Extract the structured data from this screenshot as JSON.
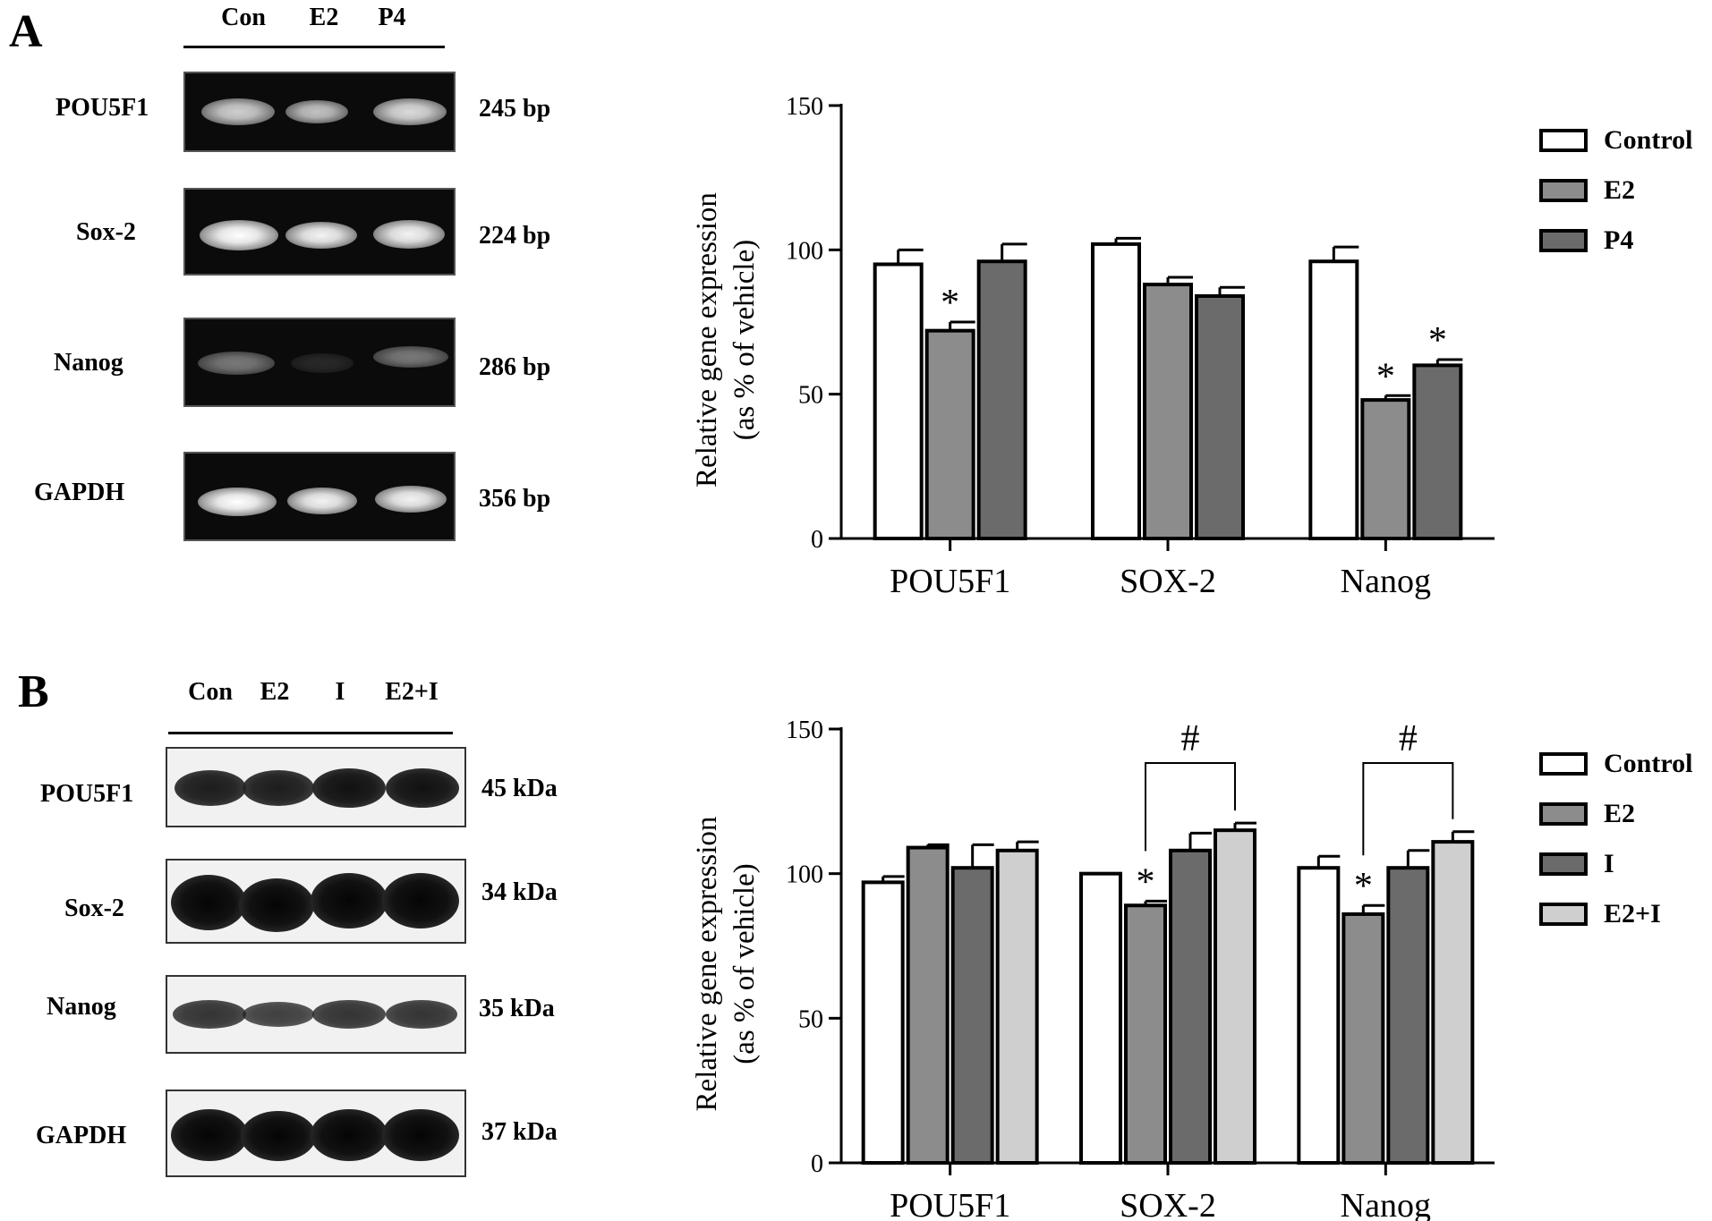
{
  "panel_a": {
    "letter": "A",
    "lanes": [
      "Con",
      "E2",
      "P4"
    ],
    "rows": [
      {
        "label": "POU5F1",
        "size": "245 bp",
        "intensity": [
          0.8,
          0.75,
          0.85
        ]
      },
      {
        "label": "Sox-2",
        "size": "224 bp",
        "intensity": [
          1.0,
          0.95,
          0.95
        ]
      },
      {
        "label": "Nanog",
        "size": "286 bp",
        "intensity": [
          0.45,
          0.12,
          0.45
        ]
      },
      {
        "label": "GAPDH",
        "size": "356 bp",
        "intensity": [
          1.0,
          0.95,
          0.95
        ]
      }
    ]
  },
  "panel_b": {
    "letter": "B",
    "lanes": [
      "Con",
      "E2",
      "I",
      "E2+I"
    ],
    "rows": [
      {
        "label": "POU5F1",
        "size": "45 kDa",
        "intensity": [
          0.9,
          0.9,
          0.95,
          0.95
        ]
      },
      {
        "label": "Sox-2",
        "size": "34 kDa",
        "intensity": [
          1.0,
          1.0,
          1.0,
          1.0
        ]
      },
      {
        "label": "Nanog",
        "size": "35 kDa",
        "intensity": [
          0.8,
          0.75,
          0.8,
          0.8
        ]
      },
      {
        "label": "GAPDH",
        "size": "37 kDa",
        "intensity": [
          1.0,
          1.0,
          1.0,
          1.0
        ]
      }
    ]
  },
  "chart_data": [
    {
      "type": "bar",
      "categories": [
        "POU5F1",
        "SOX-2",
        "Nanog"
      ],
      "ylabel": [
        "Relative gene expression",
        "(as % of vehicle)"
      ],
      "ylim": [
        0,
        150
      ],
      "yticks": [
        "0",
        "50",
        "100",
        "150"
      ],
      "legend_position": "top-right",
      "series": [
        {
          "name": "Control",
          "color": "#ffffff",
          "values": [
            95,
            102,
            96
          ],
          "errors": [
            5,
            2,
            5
          ],
          "marks": [
            "",
            "",
            ""
          ]
        },
        {
          "name": "E2",
          "color": "#8c8c8c",
          "values": [
            72,
            88,
            48
          ],
          "errors": [
            3,
            2.5,
            1.5
          ],
          "marks": [
            "*",
            "",
            "*"
          ]
        },
        {
          "name": "P4",
          "color": "#6b6b6b",
          "values": [
            96,
            84,
            60
          ],
          "errors": [
            6,
            3,
            2
          ],
          "marks": [
            "",
            "",
            "*"
          ]
        }
      ],
      "brackets": []
    },
    {
      "type": "bar",
      "categories": [
        "POU5F1",
        "SOX-2",
        "Nanog"
      ],
      "ylabel": [
        "Relative gene expression",
        "(as % of vehicle)"
      ],
      "ylim": [
        0,
        150
      ],
      "yticks": [
        "0",
        "50",
        "100",
        "150"
      ],
      "legend_position": "top-right",
      "series": [
        {
          "name": "Control",
          "color": "#ffffff",
          "values": [
            97,
            100,
            102
          ],
          "errors": [
            2,
            0,
            4
          ],
          "marks": [
            "",
            "",
            ""
          ]
        },
        {
          "name": "E2",
          "color": "#8c8c8c",
          "values": [
            109,
            89,
            86
          ],
          "errors": [
            1,
            1.5,
            3
          ],
          "marks": [
            "",
            "*",
            "*"
          ]
        },
        {
          "name": "I",
          "color": "#6b6b6b",
          "values": [
            102,
            108,
            102
          ],
          "errors": [
            8,
            6,
            6
          ],
          "marks": [
            "",
            "",
            ""
          ]
        },
        {
          "name": "E2+I",
          "color": "#cfcfcf",
          "values": [
            108,
            115,
            111
          ],
          "errors": [
            3,
            2.5,
            3.5
          ],
          "marks": [
            "",
            "",
            ""
          ]
        }
      ],
      "brackets": [
        {
          "category": 1,
          "from_series": 1,
          "to_series": 3,
          "symbol": "#"
        },
        {
          "category": 2,
          "from_series": 1,
          "to_series": 3,
          "symbol": "#"
        }
      ]
    }
  ]
}
